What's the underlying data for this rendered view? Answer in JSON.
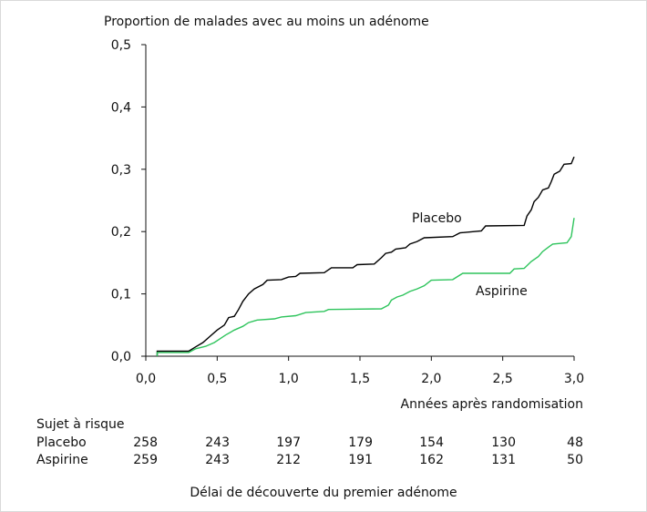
{
  "chart_data": {
    "type": "line",
    "title": "Proportion de malades avec au moins un adénome",
    "xlabel": "Années après randomisation",
    "ylabel": "",
    "xlim": [
      0,
      3
    ],
    "ylim": [
      0,
      0.5
    ],
    "x_ticks": [
      "0,0",
      "0,5",
      "1,0",
      "1,5",
      "2,0",
      "2,5",
      "3,0"
    ],
    "y_ticks": [
      "0,0",
      "0,1",
      "0,2",
      "0,3",
      "0,4",
      "0,5"
    ],
    "grid": false,
    "legend": "inline labels",
    "series": [
      {
        "name": "Placebo",
        "color": "#000000",
        "points": [
          [
            0.08,
            0.0
          ],
          [
            0.08,
            0.008
          ],
          [
            0.3,
            0.008
          ],
          [
            0.35,
            0.015
          ],
          [
            0.4,
            0.022
          ],
          [
            0.45,
            0.032
          ],
          [
            0.5,
            0.042
          ],
          [
            0.55,
            0.05
          ],
          [
            0.58,
            0.062
          ],
          [
            0.62,
            0.064
          ],
          [
            0.65,
            0.075
          ],
          [
            0.68,
            0.088
          ],
          [
            0.72,
            0.1
          ],
          [
            0.76,
            0.108
          ],
          [
            0.82,
            0.115
          ],
          [
            0.85,
            0.122
          ],
          [
            0.95,
            0.123
          ],
          [
            1.0,
            0.127
          ],
          [
            1.05,
            0.128
          ],
          [
            1.08,
            0.133
          ],
          [
            1.25,
            0.134
          ],
          [
            1.3,
            0.142
          ],
          [
            1.45,
            0.142
          ],
          [
            1.48,
            0.147
          ],
          [
            1.6,
            0.148
          ],
          [
            1.65,
            0.158
          ],
          [
            1.68,
            0.165
          ],
          [
            1.72,
            0.167
          ],
          [
            1.75,
            0.172
          ],
          [
            1.82,
            0.174
          ],
          [
            1.85,
            0.18
          ],
          [
            1.9,
            0.184
          ],
          [
            1.95,
            0.19
          ],
          [
            2.15,
            0.192
          ],
          [
            2.2,
            0.198
          ],
          [
            2.35,
            0.201
          ],
          [
            2.38,
            0.209
          ],
          [
            2.65,
            0.21
          ],
          [
            2.67,
            0.225
          ],
          [
            2.7,
            0.235
          ],
          [
            2.72,
            0.248
          ],
          [
            2.75,
            0.255
          ],
          [
            2.78,
            0.267
          ],
          [
            2.82,
            0.27
          ],
          [
            2.84,
            0.28
          ],
          [
            2.86,
            0.292
          ],
          [
            2.9,
            0.297
          ],
          [
            2.93,
            0.308
          ],
          [
            2.98,
            0.309
          ],
          [
            3.0,
            0.32
          ]
        ]
      },
      {
        "name": "Aspirine",
        "color": "#2ec45c",
        "points": [
          [
            0.08,
            0.0
          ],
          [
            0.08,
            0.006
          ],
          [
            0.3,
            0.006
          ],
          [
            0.35,
            0.012
          ],
          [
            0.42,
            0.016
          ],
          [
            0.48,
            0.022
          ],
          [
            0.52,
            0.028
          ],
          [
            0.56,
            0.034
          ],
          [
            0.62,
            0.042
          ],
          [
            0.68,
            0.048
          ],
          [
            0.72,
            0.054
          ],
          [
            0.78,
            0.058
          ],
          [
            0.9,
            0.06
          ],
          [
            0.95,
            0.063
          ],
          [
            1.05,
            0.065
          ],
          [
            1.12,
            0.07
          ],
          [
            1.25,
            0.072
          ],
          [
            1.28,
            0.075
          ],
          [
            1.65,
            0.076
          ],
          [
            1.7,
            0.082
          ],
          [
            1.72,
            0.09
          ],
          [
            1.76,
            0.095
          ],
          [
            1.8,
            0.098
          ],
          [
            1.85,
            0.104
          ],
          [
            1.9,
            0.108
          ],
          [
            1.95,
            0.113
          ],
          [
            2.0,
            0.122
          ],
          [
            2.15,
            0.123
          ],
          [
            2.22,
            0.133
          ],
          [
            2.55,
            0.133
          ],
          [
            2.58,
            0.14
          ],
          [
            2.65,
            0.141
          ],
          [
            2.7,
            0.152
          ],
          [
            2.75,
            0.16
          ],
          [
            2.78,
            0.168
          ],
          [
            2.82,
            0.175
          ],
          [
            2.85,
            0.18
          ],
          [
            2.95,
            0.182
          ],
          [
            2.98,
            0.192
          ],
          [
            3.0,
            0.222
          ]
        ]
      }
    ],
    "series_labels": {
      "placebo": "Placebo",
      "aspirine": "Aspirine"
    },
    "at_risk": {
      "title": "Sujet à risque",
      "rows": [
        {
          "label": "Placebo",
          "values": [
            "258",
            "243",
            "197",
            "179",
            "154",
            "130",
            "48"
          ]
        },
        {
          "label": "Aspirine",
          "values": [
            "259",
            "243",
            "212",
            "191",
            "162",
            "131",
            "50"
          ]
        }
      ]
    },
    "caption": "Délai de découverte du premier adénome"
  }
}
